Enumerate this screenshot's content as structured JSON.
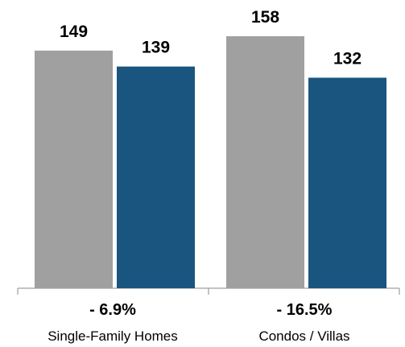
{
  "chart_data": {
    "type": "bar",
    "categories": [
      "Single-Family Homes",
      "Condos / Villas"
    ],
    "series": [
      {
        "values": [
          149,
          158
        ],
        "color": "#a0a0a0"
      },
      {
        "values": [
          139,
          132
        ],
        "color": "#1a5580"
      }
    ],
    "value_labels": [
      [
        "149",
        "158"
      ],
      [
        "139",
        "132"
      ]
    ],
    "change_labels": [
      "- 6.9%",
      "- 16.5%"
    ],
    "ylim": [
      0,
      158
    ],
    "axis_color": "#888888",
    "grid": false,
    "legend": "none"
  }
}
